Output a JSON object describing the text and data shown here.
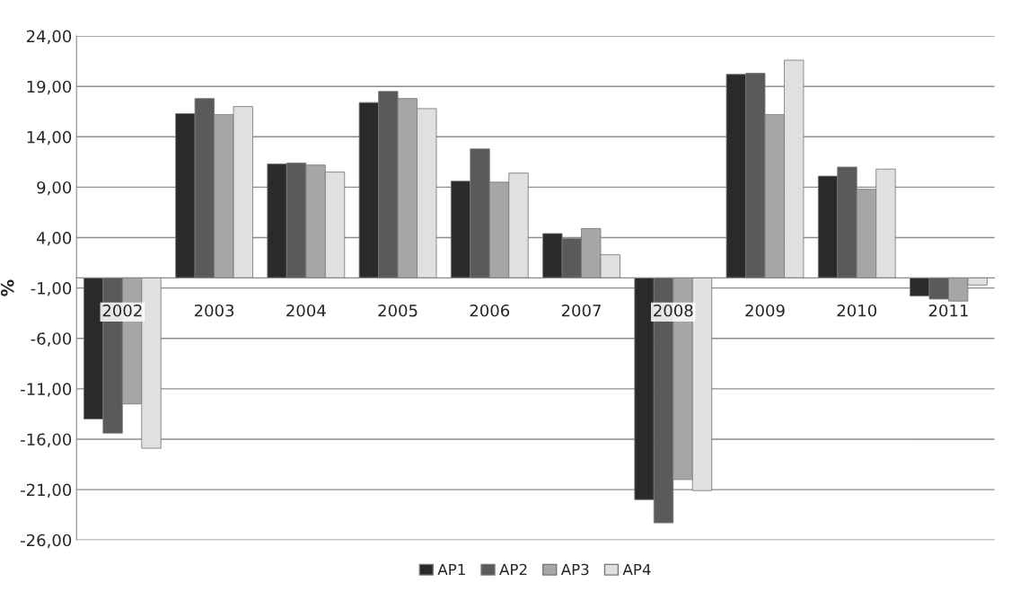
{
  "chart_data": {
    "type": "bar",
    "ylabel": "%",
    "categories": [
      "2002",
      "2003",
      "2004",
      "2005",
      "2006",
      "2007",
      "2008",
      "2009",
      "2010",
      "2011"
    ],
    "series": [
      {
        "name": "AP1",
        "color": "#2a2a2a",
        "values": [
          -14.0,
          16.3,
          11.3,
          17.4,
          9.6,
          4.4,
          -22.0,
          20.2,
          10.1,
          -1.8
        ]
      },
      {
        "name": "AP2",
        "color": "#5a5a5a",
        "values": [
          -15.4,
          17.8,
          11.4,
          18.5,
          12.8,
          3.9,
          -24.3,
          20.3,
          11.0,
          -2.1
        ]
      },
      {
        "name": "AP3",
        "color": "#a6a6a6",
        "values": [
          -12.5,
          16.2,
          11.2,
          17.8,
          9.5,
          4.9,
          -20.0,
          16.2,
          8.8,
          -2.3
        ]
      },
      {
        "name": "AP4",
        "color": "#e0e0e0",
        "values": [
          -16.9,
          17.0,
          10.5,
          16.8,
          10.4,
          2.3,
          -21.1,
          21.6,
          10.8,
          -0.7
        ]
      }
    ],
    "ylim": [
      -26,
      24
    ],
    "yticks": [
      {
        "value": -26,
        "label": "-26,00"
      },
      {
        "value": -21,
        "label": "-21,00"
      },
      {
        "value": -16,
        "label": "-16,00"
      },
      {
        "value": -11,
        "label": "-11,00"
      },
      {
        "value": -6,
        "label": "-6,00"
      },
      {
        "value": -1,
        "label": "-1,00"
      },
      {
        "value": 4,
        "label": "4,00"
      },
      {
        "value": 9,
        "label": "9,00"
      },
      {
        "value": 14,
        "label": "14,00"
      },
      {
        "value": 19,
        "label": "19,00"
      },
      {
        "value": 24,
        "label": "24,00"
      }
    ],
    "grid": "y",
    "legend": "bottom"
  }
}
